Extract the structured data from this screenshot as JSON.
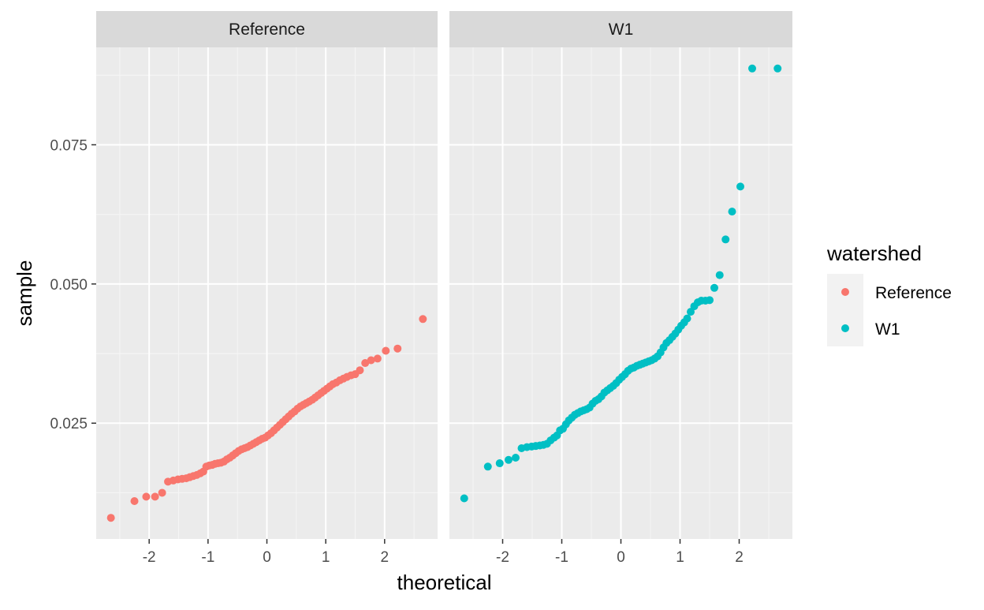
{
  "chart_data": {
    "type": "scatter",
    "xlabel": "theoretical",
    "ylabel": "sample",
    "xlim": [
      -2.9,
      2.9
    ],
    "ylim": [
      0.0042,
      0.0925
    ],
    "x_ticks": [
      -2,
      -1,
      0,
      1,
      2
    ],
    "x_tick_labels": [
      "-2",
      "-1",
      "0",
      "1",
      "2"
    ],
    "y_ticks": [
      0.025,
      0.05,
      0.075
    ],
    "y_tick_labels": [
      "0.025",
      "0.050",
      "0.075"
    ],
    "grid": true,
    "legend": {
      "title": "watershed",
      "position": "right",
      "entries": [
        {
          "label": "Reference",
          "color": "#F8766D"
        },
        {
          "label": "W1",
          "color": "#00BFC4"
        }
      ]
    },
    "panels": [
      {
        "strip": "Reference",
        "color": "#F8766D",
        "x": [
          -2.65,
          -2.25,
          -2.05,
          -1.9,
          -1.78,
          -1.68,
          -1.59,
          -1.51,
          -1.44,
          -1.37,
          -1.31,
          -1.25,
          -1.19,
          -1.13,
          -1.08,
          -1.03,
          -0.98,
          -0.93,
          -0.88,
          -0.83,
          -0.78,
          -0.73,
          -0.68,
          -0.63,
          -0.58,
          -0.53,
          -0.48,
          -0.43,
          -0.38,
          -0.33,
          -0.28,
          -0.23,
          -0.18,
          -0.13,
          -0.08,
          -0.03,
          0.02,
          0.07,
          0.12,
          0.17,
          0.22,
          0.27,
          0.32,
          0.37,
          0.42,
          0.47,
          0.52,
          0.57,
          0.62,
          0.67,
          0.72,
          0.77,
          0.82,
          0.87,
          0.92,
          0.97,
          1.02,
          1.07,
          1.12,
          1.18,
          1.24,
          1.3,
          1.36,
          1.43,
          1.5,
          1.58,
          1.67,
          1.77,
          1.88,
          2.02,
          2.22,
          2.65
        ],
        "y": [
          0.008,
          0.011,
          0.0118,
          0.0118,
          0.0125,
          0.0145,
          0.0147,
          0.0149,
          0.015,
          0.0151,
          0.0153,
          0.0155,
          0.0157,
          0.016,
          0.0163,
          0.0172,
          0.0174,
          0.0175,
          0.0177,
          0.0178,
          0.0179,
          0.0181,
          0.0185,
          0.0188,
          0.0192,
          0.0196,
          0.02,
          0.0203,
          0.0205,
          0.0207,
          0.021,
          0.0213,
          0.0216,
          0.0219,
          0.0222,
          0.0224,
          0.0228,
          0.0232,
          0.0237,
          0.0242,
          0.0247,
          0.0252,
          0.0257,
          0.0262,
          0.0267,
          0.0271,
          0.0276,
          0.028,
          0.0283,
          0.0286,
          0.0289,
          0.0292,
          0.0296,
          0.03,
          0.0304,
          0.0308,
          0.0312,
          0.0316,
          0.032,
          0.0323,
          0.0327,
          0.033,
          0.0333,
          0.0336,
          0.0338,
          0.0345,
          0.0358,
          0.0363,
          0.0366,
          0.038,
          0.0384,
          0.0437
        ]
      },
      {
        "strip": "W1",
        "color": "#00BFC4",
        "x": [
          -2.65,
          -2.25,
          -2.05,
          -1.9,
          -1.78,
          -1.68,
          -1.59,
          -1.51,
          -1.44,
          -1.37,
          -1.31,
          -1.25,
          -1.19,
          -1.13,
          -1.08,
          -1.03,
          -0.98,
          -0.93,
          -0.88,
          -0.83,
          -0.78,
          -0.73,
          -0.68,
          -0.63,
          -0.58,
          -0.53,
          -0.48,
          -0.43,
          -0.38,
          -0.33,
          -0.28,
          -0.23,
          -0.18,
          -0.13,
          -0.08,
          -0.03,
          0.02,
          0.07,
          0.12,
          0.17,
          0.22,
          0.27,
          0.32,
          0.37,
          0.42,
          0.47,
          0.52,
          0.57,
          0.62,
          0.67,
          0.72,
          0.77,
          0.82,
          0.87,
          0.92,
          0.97,
          1.02,
          1.07,
          1.12,
          1.18,
          1.24,
          1.3,
          1.36,
          1.43,
          1.5,
          1.58,
          1.67,
          1.77,
          1.88,
          2.02,
          2.22,
          2.65
        ],
        "y": [
          0.0115,
          0.0172,
          0.0178,
          0.0184,
          0.0188,
          0.0205,
          0.0207,
          0.0208,
          0.0209,
          0.021,
          0.0211,
          0.0213,
          0.0219,
          0.0224,
          0.0228,
          0.0237,
          0.024,
          0.0248,
          0.0255,
          0.026,
          0.0265,
          0.0268,
          0.0271,
          0.0273,
          0.0275,
          0.0278,
          0.0285,
          0.029,
          0.0293,
          0.0298,
          0.0305,
          0.0309,
          0.0313,
          0.0317,
          0.0322,
          0.0328,
          0.0333,
          0.0338,
          0.0344,
          0.0348,
          0.035,
          0.0353,
          0.0355,
          0.0357,
          0.0359,
          0.0361,
          0.0363,
          0.0366,
          0.037,
          0.0377,
          0.0386,
          0.0394,
          0.0399,
          0.0405,
          0.0411,
          0.0418,
          0.0425,
          0.0431,
          0.0438,
          0.045,
          0.046,
          0.0467,
          0.047,
          0.047,
          0.0471,
          0.0493,
          0.0516,
          0.058,
          0.063,
          0.0675,
          0.0887,
          0.0887
        ]
      }
    ]
  }
}
